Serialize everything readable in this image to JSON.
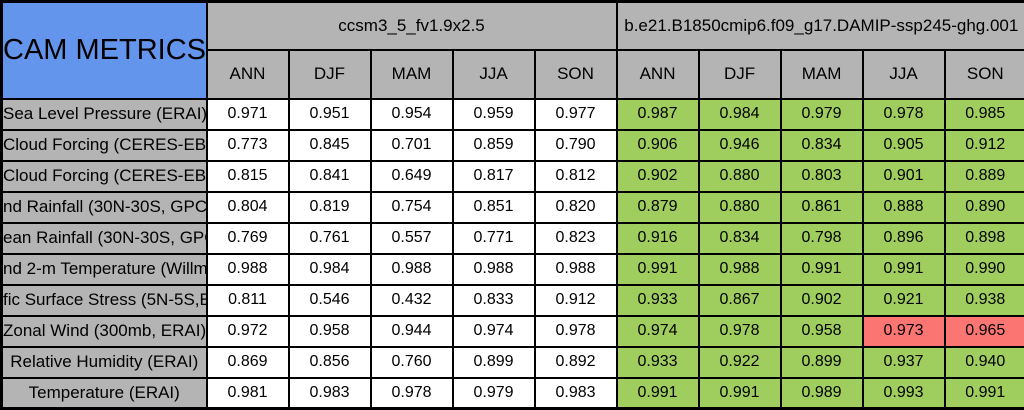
{
  "table": {
    "corner_title": "CAM METRICS",
    "groups": [
      {
        "label": "ccsm3_5_fv1.9x2.5"
      },
      {
        "label": "b.e21.B1850cmip6.f09_g17.DAMIP-ssp245-ghg.001"
      }
    ],
    "season_headers": [
      "ANN",
      "DJF",
      "MAM",
      "JJA",
      "SON",
      "ANN",
      "DJF",
      "MAM",
      "JJA",
      "SON"
    ],
    "rows": [
      {
        "label": "Sea Level Pressure (ERAI)",
        "values": [
          "0.971",
          "0.951",
          "0.954",
          "0.959",
          "0.977",
          "0.987",
          "0.984",
          "0.979",
          "0.978",
          "0.985"
        ],
        "cell_colors": [
          "white",
          "white",
          "white",
          "white",
          "white",
          "green",
          "green",
          "green",
          "green",
          "green"
        ]
      },
      {
        "label": "Cloud Forcing (CERES-EB",
        "values": [
          "0.773",
          "0.845",
          "0.701",
          "0.859",
          "0.790",
          "0.906",
          "0.946",
          "0.834",
          "0.905",
          "0.912"
        ],
        "cell_colors": [
          "white",
          "white",
          "white",
          "white",
          "white",
          "green",
          "green",
          "green",
          "green",
          "green"
        ]
      },
      {
        "label": "Cloud Forcing (CERES-EB",
        "values": [
          "0.815",
          "0.841",
          "0.649",
          "0.817",
          "0.812",
          "0.902",
          "0.880",
          "0.803",
          "0.901",
          "0.889"
        ],
        "cell_colors": [
          "white",
          "white",
          "white",
          "white",
          "white",
          "green",
          "green",
          "green",
          "green",
          "green"
        ]
      },
      {
        "label": "nd Rainfall (30N-30S, GPC",
        "values": [
          "0.804",
          "0.819",
          "0.754",
          "0.851",
          "0.820",
          "0.879",
          "0.880",
          "0.861",
          "0.888",
          "0.890"
        ],
        "cell_colors": [
          "white",
          "white",
          "white",
          "white",
          "white",
          "green",
          "green",
          "green",
          "green",
          "green"
        ]
      },
      {
        "label": "ean Rainfall (30N-30S, GPC",
        "values": [
          "0.769",
          "0.761",
          "0.557",
          "0.771",
          "0.823",
          "0.916",
          "0.834",
          "0.798",
          "0.896",
          "0.898"
        ],
        "cell_colors": [
          "white",
          "white",
          "white",
          "white",
          "white",
          "green",
          "green",
          "green",
          "green",
          "green"
        ]
      },
      {
        "label": "nd 2-m Temperature (Willm",
        "values": [
          "0.988",
          "0.984",
          "0.988",
          "0.988",
          "0.988",
          "0.991",
          "0.988",
          "0.991",
          "0.991",
          "0.990"
        ],
        "cell_colors": [
          "white",
          "white",
          "white",
          "white",
          "white",
          "green",
          "green",
          "green",
          "green",
          "green"
        ]
      },
      {
        "label": "fic Surface Stress (5N-5S,E",
        "values": [
          "0.811",
          "0.546",
          "0.432",
          "0.833",
          "0.912",
          "0.933",
          "0.867",
          "0.902",
          "0.921",
          "0.938"
        ],
        "cell_colors": [
          "white",
          "white",
          "white",
          "white",
          "white",
          "green",
          "green",
          "green",
          "green",
          "green"
        ]
      },
      {
        "label": "Zonal Wind (300mb, ERAI)",
        "values": [
          "0.972",
          "0.958",
          "0.944",
          "0.974",
          "0.978",
          "0.974",
          "0.978",
          "0.958",
          "0.973",
          "0.965"
        ],
        "cell_colors": [
          "white",
          "white",
          "white",
          "white",
          "white",
          "green",
          "green",
          "green",
          "red",
          "red"
        ]
      },
      {
        "label": "Relative Humidity (ERAI)",
        "values": [
          "0.869",
          "0.856",
          "0.760",
          "0.899",
          "0.892",
          "0.933",
          "0.922",
          "0.899",
          "0.937",
          "0.940"
        ],
        "cell_colors": [
          "white",
          "white",
          "white",
          "white",
          "white",
          "green",
          "green",
          "green",
          "green",
          "green"
        ]
      },
      {
        "label": "Temperature (ERAI)",
        "values": [
          "0.981",
          "0.983",
          "0.978",
          "0.979",
          "0.983",
          "0.991",
          "0.991",
          "0.989",
          "0.993",
          "0.991"
        ],
        "cell_colors": [
          "white",
          "white",
          "white",
          "white",
          "white",
          "green",
          "green",
          "green",
          "green",
          "green"
        ]
      }
    ]
  },
  "colors": {
    "title_cell_blue": "#6495ed",
    "header_gray": "#b4b4b4",
    "cell_white": "#ffffff",
    "cell_green": "#a0ce5e",
    "cell_red": "#fb7673",
    "border_black": "#000000",
    "text_black": "#000000"
  },
  "chart_data": {
    "type": "table",
    "title": "CAM METRICS",
    "column_groups": [
      {
        "name": "ccsm3_5_fv1.9x2.5",
        "columns": [
          "ANN",
          "DJF",
          "MAM",
          "JJA",
          "SON"
        ]
      },
      {
        "name": "b.e21.B1850cmip6.f09_g17.DAMIP-ssp245-ghg.001",
        "columns": [
          "ANN",
          "DJF",
          "MAM",
          "JJA",
          "SON"
        ]
      }
    ],
    "row_labels": [
      "Sea Level Pressure (ERAI)",
      "Cloud Forcing (CERES-EB",
      "Cloud Forcing (CERES-EB",
      "nd Rainfall (30N-30S, GPC",
      "ean Rainfall (30N-30S, GPC",
      "nd 2-m Temperature (Willm",
      "fic Surface Stress (5N-5S,E",
      "Zonal Wind (300mb, ERAI)",
      "Relative Humidity (ERAI)",
      "Temperature (ERAI)"
    ],
    "series": [
      {
        "name": "ccsm3_5_fv1.9x2.5",
        "values": [
          [
            0.971,
            0.951,
            0.954,
            0.959,
            0.977
          ],
          [
            0.773,
            0.845,
            0.701,
            0.859,
            0.79
          ],
          [
            0.815,
            0.841,
            0.649,
            0.817,
            0.812
          ],
          [
            0.804,
            0.819,
            0.754,
            0.851,
            0.82
          ],
          [
            0.769,
            0.761,
            0.557,
            0.771,
            0.823
          ],
          [
            0.988,
            0.984,
            0.988,
            0.988,
            0.988
          ],
          [
            0.811,
            0.546,
            0.432,
            0.833,
            0.912
          ],
          [
            0.972,
            0.958,
            0.944,
            0.974,
            0.978
          ],
          [
            0.869,
            0.856,
            0.76,
            0.899,
            0.892
          ],
          [
            0.981,
            0.983,
            0.978,
            0.979,
            0.983
          ]
        ],
        "cell_fill": "white"
      },
      {
        "name": "b.e21.B1850cmip6.f09_g17.DAMIP-ssp245-ghg.001",
        "values": [
          [
            0.987,
            0.984,
            0.979,
            0.978,
            0.985
          ],
          [
            0.906,
            0.946,
            0.834,
            0.905,
            0.912
          ],
          [
            0.902,
            0.88,
            0.803,
            0.901,
            0.889
          ],
          [
            0.879,
            0.88,
            0.861,
            0.888,
            0.89
          ],
          [
            0.916,
            0.834,
            0.798,
            0.896,
            0.898
          ],
          [
            0.991,
            0.988,
            0.991,
            0.991,
            0.99
          ],
          [
            0.933,
            0.867,
            0.902,
            0.921,
            0.938
          ],
          [
            0.974,
            0.978,
            0.958,
            0.973,
            0.965
          ],
          [
            0.933,
            0.922,
            0.899,
            0.937,
            0.94
          ],
          [
            0.991,
            0.991,
            0.989,
            0.993,
            0.991
          ]
        ],
        "cell_fill": "green",
        "red_cells": [
          {
            "row_label": "Zonal Wind (300mb, ERAI)",
            "column": "JJA",
            "value": 0.973
          },
          {
            "row_label": "Zonal Wind (300mb, ERAI)",
            "column": "SON",
            "value": 0.965
          }
        ]
      }
    ],
    "layout_hints": {
      "first_column": "metric row labels, gray background, labels clipped at cell edges",
      "header_rows": 2,
      "grid": "black cell borders"
    }
  }
}
